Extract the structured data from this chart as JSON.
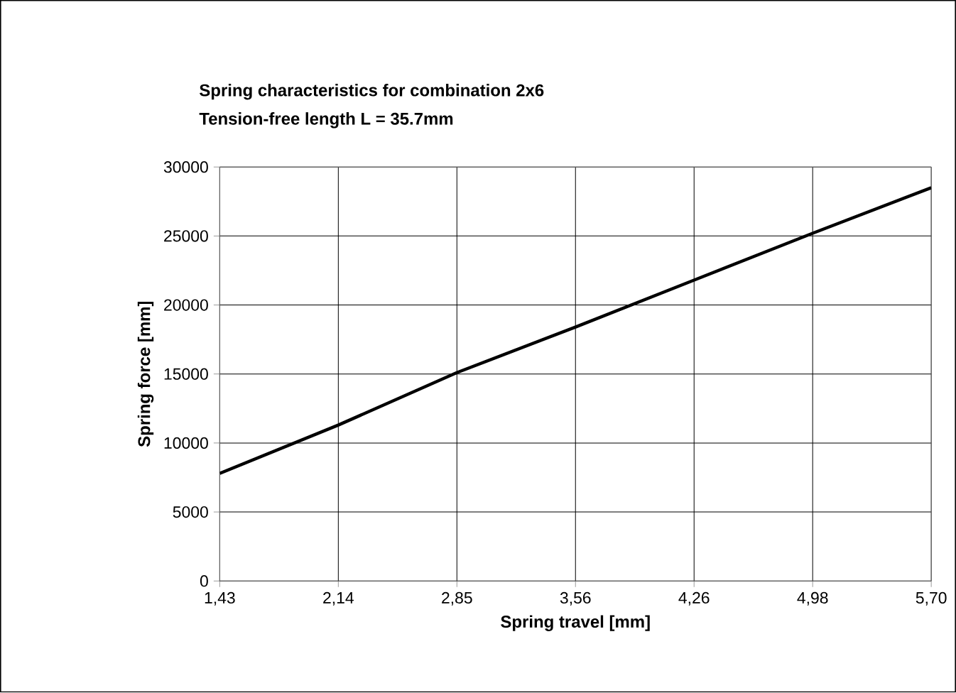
{
  "chart_data": {
    "type": "line",
    "title": "Spring characteristics for combination 2x6",
    "subtitle": "Tension-free length L = 35.7mm",
    "xlabel": "Spring travel [mm]",
    "ylabel": "Spring force [mm]",
    "categories": [
      "1,43",
      "2,14",
      "2,85",
      "3,56",
      "4,26",
      "4,98",
      "5,70"
    ],
    "series": [
      {
        "color": "#000000",
        "values": [
          7800,
          11300,
          15100,
          18400,
          21800,
          25200,
          28500
        ]
      }
    ],
    "ylim": [
      0,
      30000
    ],
    "yticks": [
      0,
      5000,
      10000,
      15000,
      20000,
      25000,
      30000
    ],
    "grid": true,
    "marker": "none",
    "line_style": "solid"
  }
}
